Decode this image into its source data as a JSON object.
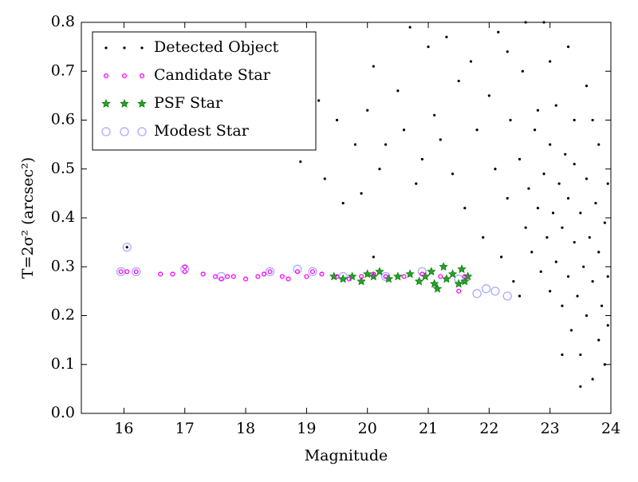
{
  "chart_data": {
    "type": "scatter",
    "x_label": "Magnitude",
    "y_label": "T=2σ² (arcsec²)",
    "xlim": [
      15.3,
      24
    ],
    "ylim": [
      0,
      0.8
    ],
    "xticks": [
      16,
      17,
      18,
      19,
      20,
      21,
      22,
      23,
      24
    ],
    "yticks": [
      {
        "value": 0,
        "label": "0.0"
      },
      0.1,
      0.2,
      0.3,
      0.4,
      0.5,
      0.6,
      0.7,
      0.8
    ],
    "legend": "upper left",
    "series": [
      {
        "name": "Detected Object",
        "color": "#000000",
        "marker": "dot",
        "x": [
          16.05,
          18.9,
          19.2,
          19.3,
          19.5,
          19.6,
          19.8,
          19.9,
          20.0,
          20.1,
          20.2,
          20.3,
          20.1,
          20.5,
          20.6,
          20.7,
          20.8,
          20.9,
          21.0,
          21.1,
          21.2,
          21.3,
          21.4,
          21.5,
          21.6,
          21.7,
          21.8,
          21.9,
          22.0,
          22.1,
          22.15,
          22.2,
          22.3,
          22.35,
          22.4,
          22.5,
          22.55,
          22.6,
          22.65,
          22.7,
          22.75,
          22.8,
          22.85,
          22.9,
          22.95,
          23.0,
          23.0,
          23.05,
          23.1,
          23.1,
          23.15,
          23.2,
          23.2,
          23.25,
          23.3,
          23.3,
          23.35,
          23.4,
          23.4,
          23.45,
          23.5,
          23.5,
          23.55,
          23.6,
          23.6,
          23.65,
          23.7,
          23.7,
          23.75,
          23.8,
          23.8,
          23.85,
          23.9,
          23.9,
          23.95,
          23.95,
          23.5,
          23.3,
          22.9,
          23.6,
          23.8,
          23.95,
          23.2,
          22.5,
          22.8,
          23.0,
          22.3,
          22.6,
          23.4,
          23.7
        ],
        "y": [
          0.34,
          0.515,
          0.64,
          0.48,
          0.6,
          0.43,
          0.55,
          0.45,
          0.62,
          0.71,
          0.5,
          0.55,
          0.32,
          0.66,
          0.58,
          0.79,
          0.47,
          0.52,
          0.75,
          0.61,
          0.56,
          0.77,
          0.49,
          0.68,
          0.42,
          0.72,
          0.58,
          0.36,
          0.65,
          0.5,
          0.78,
          0.32,
          0.44,
          0.6,
          0.27,
          0.52,
          0.7,
          0.38,
          0.46,
          0.33,
          0.58,
          0.42,
          0.29,
          0.49,
          0.36,
          0.55,
          0.25,
          0.41,
          0.63,
          0.31,
          0.47,
          0.22,
          0.38,
          0.53,
          0.28,
          0.44,
          0.17,
          0.35,
          0.6,
          0.24,
          0.41,
          0.12,
          0.3,
          0.48,
          0.2,
          0.36,
          0.07,
          0.27,
          0.43,
          0.15,
          0.33,
          0.22,
          0.39,
          0.1,
          0.28,
          0.18,
          0.055,
          0.75,
          0.8,
          0.67,
          0.55,
          0.47,
          0.12,
          0.24,
          0.62,
          0.72,
          0.74,
          0.8,
          0.51,
          0.6
        ]
      },
      {
        "name": "Candidate Star",
        "color": "#ff00ff",
        "marker": "circle",
        "x": [
          15.95,
          16.05,
          16.2,
          16.6,
          16.8,
          17.0,
          17.0,
          17.3,
          17.5,
          17.6,
          17.7,
          17.8,
          18.0,
          18.2,
          18.3,
          18.4,
          18.6,
          18.7,
          18.85,
          19.0,
          19.1,
          19.25,
          19.5,
          19.7,
          19.9,
          20.1,
          20.3,
          20.6,
          20.9,
          21.2,
          21.5,
          21.6
        ],
        "y": [
          0.29,
          0.29,
          0.29,
          0.285,
          0.285,
          0.29,
          0.3,
          0.285,
          0.28,
          0.275,
          0.28,
          0.28,
          0.275,
          0.28,
          0.285,
          0.29,
          0.28,
          0.275,
          0.29,
          0.28,
          0.29,
          0.285,
          0.28,
          0.275,
          0.28,
          0.285,
          0.28,
          0.28,
          0.285,
          0.28,
          0.25,
          0.28
        ]
      },
      {
        "name": "PSF Star",
        "color": "#008000",
        "marker": "star",
        "x": [
          19.45,
          19.6,
          19.75,
          19.9,
          20.0,
          20.1,
          20.2,
          20.35,
          20.5,
          20.7,
          20.85,
          20.95,
          21.05,
          21.1,
          21.15,
          21.25,
          21.3,
          21.4,
          21.5,
          21.55,
          21.6,
          21.65
        ],
        "y": [
          0.28,
          0.275,
          0.28,
          0.27,
          0.285,
          0.28,
          0.29,
          0.275,
          0.28,
          0.285,
          0.27,
          0.28,
          0.29,
          0.265,
          0.255,
          0.3,
          0.275,
          0.285,
          0.265,
          0.295,
          0.27,
          0.28
        ]
      },
      {
        "name": "Modest Star",
        "color": "#aaaaff",
        "marker": "open-circle",
        "x": [
          15.95,
          16.2,
          17.0,
          17.6,
          18.4,
          18.85,
          19.1,
          19.6,
          20.3,
          20.9,
          21.5,
          21.8,
          21.95,
          22.1,
          22.3,
          16.05
        ],
        "y": [
          0.29,
          0.29,
          0.295,
          0.28,
          0.29,
          0.295,
          0.29,
          0.28,
          0.28,
          0.29,
          0.275,
          0.245,
          0.255,
          0.25,
          0.24,
          0.34
        ]
      }
    ]
  }
}
